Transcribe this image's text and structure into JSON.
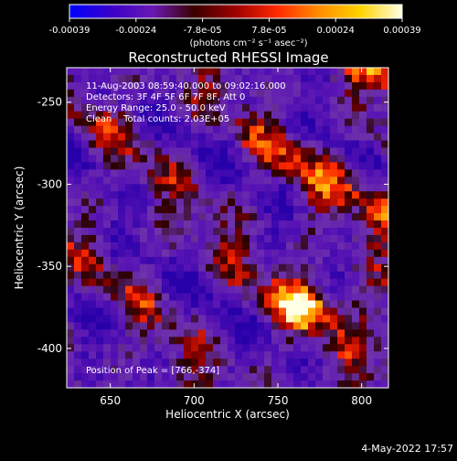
{
  "colorbar": {
    "tick_labels": [
      "-0.00039",
      "-0.00024",
      "-7.8e-05",
      "7.8e-05",
      "0.00024",
      "0.00039"
    ],
    "min": -0.00039,
    "max": 0.00039,
    "unit_label": "(photons cm⁻² s⁻¹ asec⁻²)",
    "colors": [
      "#0000ff",
      "#3a00c8",
      "#6a18b4",
      "#3a0000",
      "#a00000",
      "#ff2a00",
      "#ff8c00",
      "#ffd400",
      "#ffffe6"
    ]
  },
  "chart_data": {
    "type": "heatmap",
    "title": "Reconstructed RHESSI Image",
    "xlabel": "Heliocentric X (arcsec)",
    "ylabel": "Heliocentric Y (arcsec)",
    "xlim": [
      624,
      816
    ],
    "ylim": [
      -424,
      -229
    ],
    "x_ticks": [
      650,
      700,
      750,
      800
    ],
    "y_ticks": [
      -400,
      -350,
      -300,
      -250
    ],
    "annotations": [
      "11-Aug-2003 08:59:40.000 to 09:02:16.000",
      "Detectors: 3F 4F 5F 6F 7F 8F, Att 0",
      "Energy Range: 25.0 - 50.0 keV",
      "Clean    Total counts: 2.03E+05"
    ],
    "peak_label": "Position of Peak = [766,-374]",
    "peak": [
      766,
      -374
    ]
  },
  "footer": {
    "date": "4-May-2022 17:57"
  }
}
